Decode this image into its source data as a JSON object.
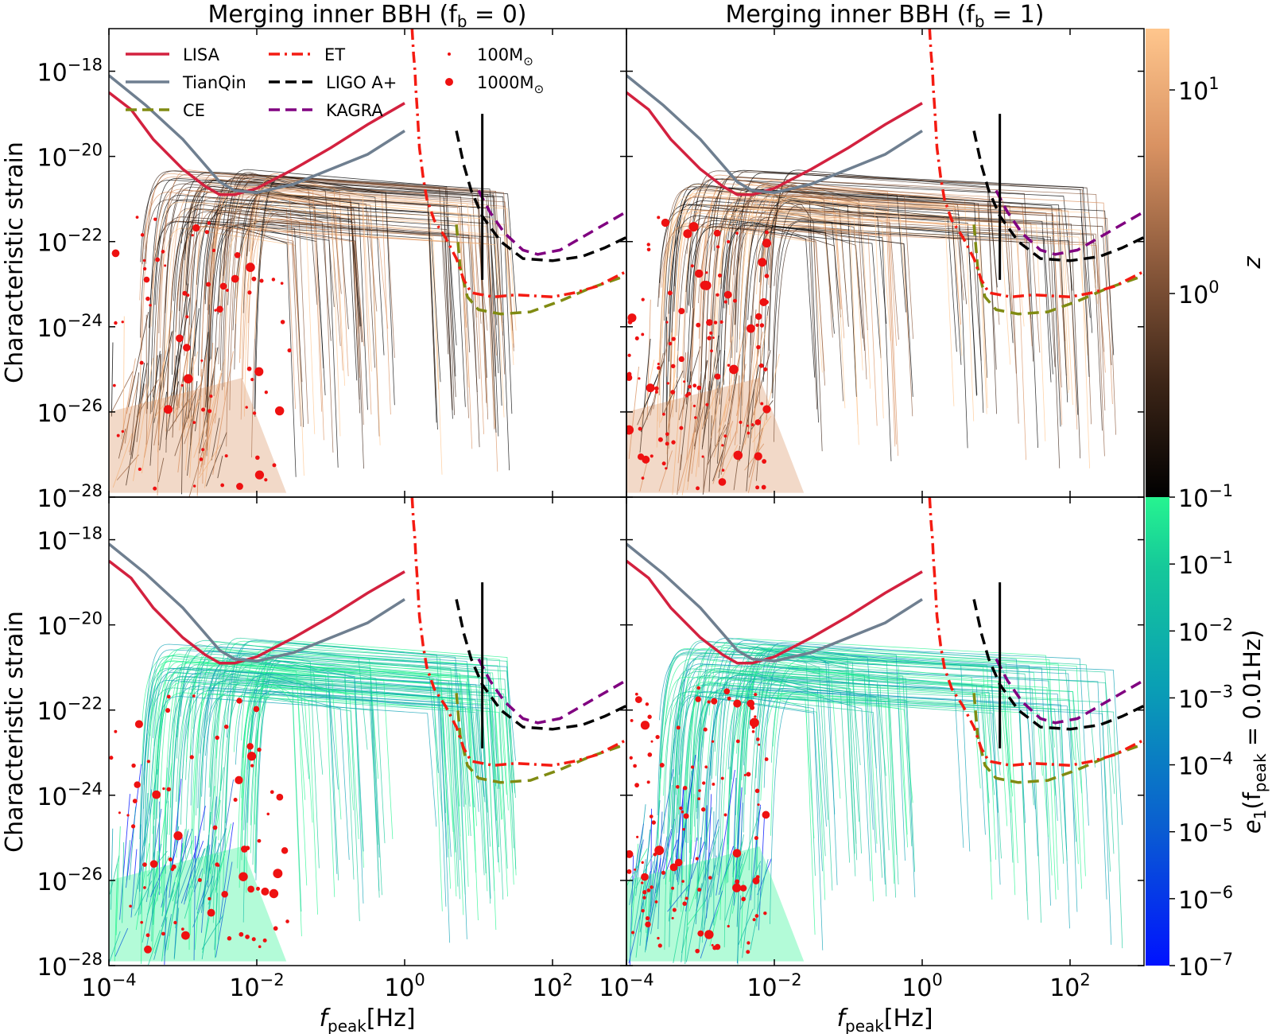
{
  "figure": {
    "title_left": "Merging inner BBH (f",
    "title_left_sub": "b",
    "title_left_end": " = 0)",
    "title_right": "Merging inner BBH (f",
    "title_right_sub": "b",
    "title_right_end": " = 1)",
    "ylabel": "Characteristic strain",
    "xlabel": "f",
    "xlabel_sub": "peak",
    "xlabel_unit": "[Hz]"
  },
  "colors": {
    "LISA": "#d3213f",
    "TianQin": "#6f7f90",
    "CE": "#808b12",
    "ET": "#f41b12",
    "LIGO": "#000000",
    "KAGRA": "#800080",
    "points": "#ee1111",
    "z_colormap": [
      "#000000",
      "#3e2618",
      "#8c5a3c",
      "#d99262",
      "#ffc68d"
    ],
    "e_colormap": [
      "#0012ff",
      "#0a5fd0",
      "#0aa0b4",
      "#15c89a",
      "#26f490"
    ]
  },
  "legend": [
    {
      "label": "LISA",
      "style": "solid",
      "color_key": "LISA"
    },
    {
      "label": "TianQin",
      "style": "solid",
      "color_key": "TianQin"
    },
    {
      "label": "CE",
      "style": "dashed",
      "color_key": "CE"
    },
    {
      "label": "ET",
      "style": "dashdot",
      "color_key": "ET"
    },
    {
      "label": "LIGO A+",
      "style": "dashed",
      "color_key": "LIGO"
    },
    {
      "label": "KAGRA",
      "style": "dashed",
      "color_key": "KAGRA"
    },
    {
      "label": "100M",
      "sub": "⊙",
      "style": "small-dot"
    },
    {
      "label": "1000M",
      "sub": "⊙",
      "style": "big-dot"
    }
  ],
  "colorbars": {
    "z": {
      "label": "z",
      "ticks": [
        {
          "base": "10",
          "exp": "1",
          "value": 10
        },
        {
          "base": "10",
          "exp": "0",
          "value": 1
        },
        {
          "base": "10",
          "exp": "−1",
          "value": 0.1
        }
      ],
      "range": [
        0.1,
        20
      ]
    },
    "e": {
      "label_main": "e",
      "label_sub1": "1",
      "label_open": "(f",
      "label_sub2": "peak",
      "label_end": " = 0.01Hz)",
      "ticks": [
        {
          "base": "10",
          "exp": "−1",
          "value": -1
        },
        {
          "base": "10",
          "exp": "−2",
          "value": -2
        },
        {
          "base": "10",
          "exp": "−3",
          "value": -3
        },
        {
          "base": "10",
          "exp": "−4",
          "value": -4
        },
        {
          "base": "10",
          "exp": "−5",
          "value": -5
        },
        {
          "base": "10",
          "exp": "−6",
          "value": -6
        },
        {
          "base": "10",
          "exp": "−7",
          "value": -7
        }
      ],
      "range": [
        -7,
        0
      ]
    }
  },
  "chart_data": [
    {
      "type": "line",
      "panel": "top-left",
      "title": "Merging inner BBH (f_b = 0)",
      "xlabel": "",
      "ylabel": "Characteristic strain",
      "xscale": "log",
      "yscale": "log",
      "xlim": [
        0.0001,
        1000
      ],
      "ylim": [
        1e-28,
        1e-17
      ],
      "color_by": "z",
      "population": "f_b = 0"
    },
    {
      "type": "line",
      "panel": "top-right",
      "title": "Merging inner BBH (f_b = 1)",
      "xlabel": "",
      "ylabel": "",
      "xscale": "log",
      "yscale": "log",
      "xlim": [
        0.0001,
        1000
      ],
      "ylim": [
        1e-28,
        1e-17
      ],
      "color_by": "z",
      "population": "f_b = 1"
    },
    {
      "type": "line",
      "panel": "bottom-left",
      "xlabel": "f_peak[Hz]",
      "ylabel": "Characteristic strain",
      "xscale": "log",
      "yscale": "log",
      "xlim": [
        0.0001,
        1000
      ],
      "ylim": [
        1e-28,
        1e-17
      ],
      "color_by": "e1",
      "population": "f_b = 0"
    },
    {
      "type": "line",
      "panel": "bottom-right",
      "xlabel": "f_peak[Hz]",
      "ylabel": "",
      "xscale": "log",
      "yscale": "log",
      "xlim": [
        0.0001,
        1000
      ],
      "ylim": [
        1e-28,
        1e-17
      ],
      "color_by": "e1",
      "population": "f_b = 1"
    }
  ],
  "axes": {
    "x_ticks": [
      {
        "base": "10",
        "exp": "−4",
        "value": -4
      },
      {
        "base": "10",
        "exp": "−2",
        "value": -2
      },
      {
        "base": "10",
        "exp": "0",
        "value": 0
      },
      {
        "base": "10",
        "exp": "2",
        "value": 2
      }
    ],
    "y_ticks": [
      {
        "base": "10",
        "exp": "−18",
        "value": -18
      },
      {
        "base": "10",
        "exp": "−20",
        "value": -20
      },
      {
        "base": "10",
        "exp": "−22",
        "value": -22
      },
      {
        "base": "10",
        "exp": "−24",
        "value": -24
      },
      {
        "base": "10",
        "exp": "−26",
        "value": -26
      },
      {
        "base": "10",
        "exp": "−28",
        "value": -28
      }
    ]
  },
  "detector_curves": {
    "LISA": [
      [
        -4,
        -18.5
      ],
      [
        -3.7,
        -18.9
      ],
      [
        -3.4,
        -19.6
      ],
      [
        -3,
        -20.3
      ],
      [
        -2.7,
        -20.7
      ],
      [
        -2.5,
        -20.9
      ],
      [
        -2.3,
        -20.9
      ],
      [
        -2,
        -20.75
      ],
      [
        -1.5,
        -20.3
      ],
      [
        -1,
        -19.8
      ],
      [
        -0.5,
        -19.25
      ],
      [
        0,
        -18.75
      ]
    ],
    "TianQin": [
      [
        -4,
        -18.1
      ],
      [
        -3.5,
        -18.8
      ],
      [
        -3,
        -19.6
      ],
      [
        -2.7,
        -20.2
      ],
      [
        -2.5,
        -20.6
      ],
      [
        -2.3,
        -20.8
      ],
      [
        -2,
        -20.85
      ],
      [
        -1.5,
        -20.65
      ],
      [
        -1,
        -20.3
      ],
      [
        -0.5,
        -19.95
      ],
      [
        0,
        -19.4
      ]
    ],
    "ET": [
      [
        0.1,
        -17.0
      ],
      [
        0.12,
        -17.6
      ],
      [
        0.14,
        -18.0
      ],
      [
        0.15,
        -18.4
      ],
      [
        0.17,
        -18.9
      ],
      [
        0.2,
        -19.8
      ],
      [
        0.25,
        -20.5
      ],
      [
        0.3,
        -21.0
      ],
      [
        0.4,
        -21.5
      ],
      [
        0.55,
        -21.9
      ],
      [
        0.7,
        -22.4
      ],
      [
        0.8,
        -22.9
      ],
      [
        0.9,
        -23.2
      ],
      [
        1.2,
        -23.3
      ],
      [
        1.5,
        -23.25
      ],
      [
        2,
        -23.3
      ],
      [
        2.3,
        -23.2
      ],
      [
        2.6,
        -23.05
      ],
      [
        3,
        -22.7
      ]
    ],
    "CE": [
      [
        0.7,
        -21.6
      ],
      [
        0.75,
        -22.6
      ],
      [
        0.85,
        -23.3
      ],
      [
        1.0,
        -23.6
      ],
      [
        1.3,
        -23.7
      ],
      [
        1.7,
        -23.65
      ],
      [
        2.1,
        -23.4
      ],
      [
        2.5,
        -23.1
      ],
      [
        3,
        -22.8
      ]
    ],
    "LIGO": [
      [
        0.7,
        -19.4
      ],
      [
        0.8,
        -20.2
      ],
      [
        0.9,
        -20.8
      ],
      [
        1.05,
        -21.4
      ],
      [
        1.3,
        -22.0
      ],
      [
        1.6,
        -22.4
      ],
      [
        2,
        -22.45
      ],
      [
        2.4,
        -22.35
      ],
      [
        2.7,
        -22.15
      ],
      [
        3,
        -21.9
      ]
    ],
    "KAGRA": [
      [
        1.0,
        -20.8
      ],
      [
        1.15,
        -21.3
      ],
      [
        1.35,
        -21.8
      ],
      [
        1.6,
        -22.2
      ],
      [
        1.8,
        -22.3
      ],
      [
        2.1,
        -22.2
      ],
      [
        2.5,
        -21.8
      ],
      [
        3,
        -21.3
      ]
    ]
  }
}
